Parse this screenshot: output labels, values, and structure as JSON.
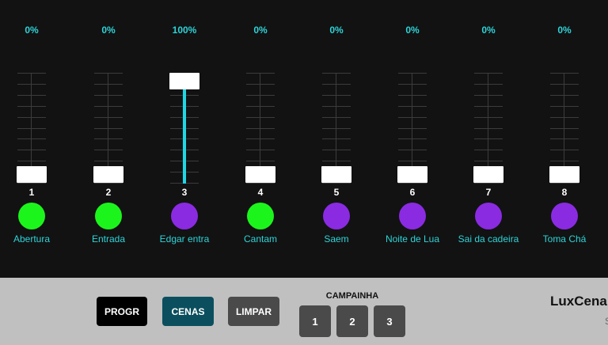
{
  "channels": [
    {
      "percent": "0%",
      "level": 0,
      "number": "1",
      "color": "#1cf51c",
      "name": "Abertura"
    },
    {
      "percent": "0%",
      "level": 0,
      "number": "2",
      "color": "#1cf51c",
      "name": "Entrada"
    },
    {
      "percent": "100%",
      "level": 100,
      "number": "3",
      "color": "#8a2be2",
      "name": "Edgar entra"
    },
    {
      "percent": "0%",
      "level": 0,
      "number": "4",
      "color": "#1cf51c",
      "name": "Cantam"
    },
    {
      "percent": "0%",
      "level": 0,
      "number": "5",
      "color": "#8a2be2",
      "name": "Saem"
    },
    {
      "percent": "0%",
      "level": 0,
      "number": "6",
      "color": "#8a2be2",
      "name": "Noite de Lua"
    },
    {
      "percent": "0%",
      "level": 0,
      "number": "7",
      "color": "#8a2be2",
      "name": "Sai da cadeira"
    },
    {
      "percent": "0%",
      "level": 0,
      "number": "8",
      "color": "#8a2be2",
      "name": "Toma Chá"
    }
  ],
  "toolbar": {
    "progr": "PROGR",
    "cenas": "CENAS",
    "limpar": "LIMPAR"
  },
  "campainha": {
    "label": "CAMPAINHA",
    "buttons": [
      "1",
      "2",
      "3"
    ]
  },
  "brand": {
    "title": "LuxCena",
    "subtitle": "S"
  },
  "colors": {
    "accent": "#2ed3d8",
    "fill": "#1ed8e8",
    "progr": "#000000",
    "cenas": "#0b4f5e",
    "limpar": "#4a4a4a",
    "panel": "#c0c0c0"
  }
}
